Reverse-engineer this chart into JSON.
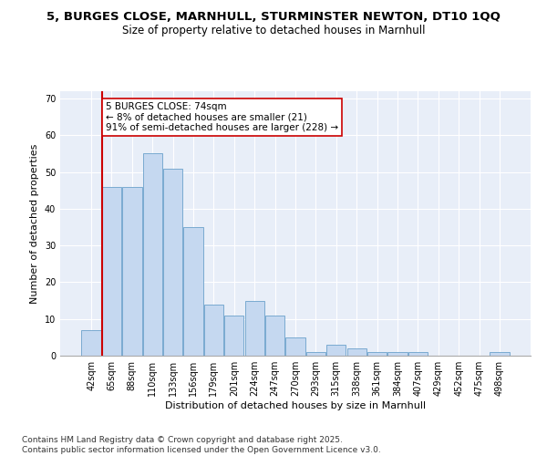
{
  "title1": "5, BURGES CLOSE, MARNHULL, STURMINSTER NEWTON, DT10 1QQ",
  "title2": "Size of property relative to detached houses in Marnhull",
  "xlabel": "Distribution of detached houses by size in Marnhull",
  "ylabel": "Number of detached properties",
  "bins": [
    "42sqm",
    "65sqm",
    "88sqm",
    "110sqm",
    "133sqm",
    "156sqm",
    "179sqm",
    "201sqm",
    "224sqm",
    "247sqm",
    "270sqm",
    "293sqm",
    "315sqm",
    "338sqm",
    "361sqm",
    "384sqm",
    "407sqm",
    "429sqm",
    "452sqm",
    "475sqm",
    "498sqm"
  ],
  "values": [
    7,
    46,
    46,
    55,
    51,
    35,
    14,
    11,
    15,
    11,
    5,
    1,
    3,
    2,
    1,
    1,
    1,
    0,
    0,
    0,
    1
  ],
  "bar_color": "#c5d8f0",
  "bar_edge_color": "#7aaad0",
  "vline_color": "#cc0000",
  "annotation_text": "5 BURGES CLOSE: 74sqm\n← 8% of detached houses are smaller (21)\n91% of semi-detached houses are larger (228) →",
  "annotation_box_color": "white",
  "annotation_box_edge": "#cc0000",
  "background_color": "#e8eef8",
  "grid_color": "white",
  "ylim": [
    0,
    72
  ],
  "yticks": [
    0,
    10,
    20,
    30,
    40,
    50,
    60,
    70
  ],
  "title_fontsize": 9.5,
  "subtitle_fontsize": 8.5,
  "axis_label_fontsize": 8,
  "tick_fontsize": 7,
  "annotation_fontsize": 7.5,
  "footer_fontsize": 6.5,
  "footer": "Contains HM Land Registry data © Crown copyright and database right 2025.\nContains public sector information licensed under the Open Government Licence v3.0."
}
